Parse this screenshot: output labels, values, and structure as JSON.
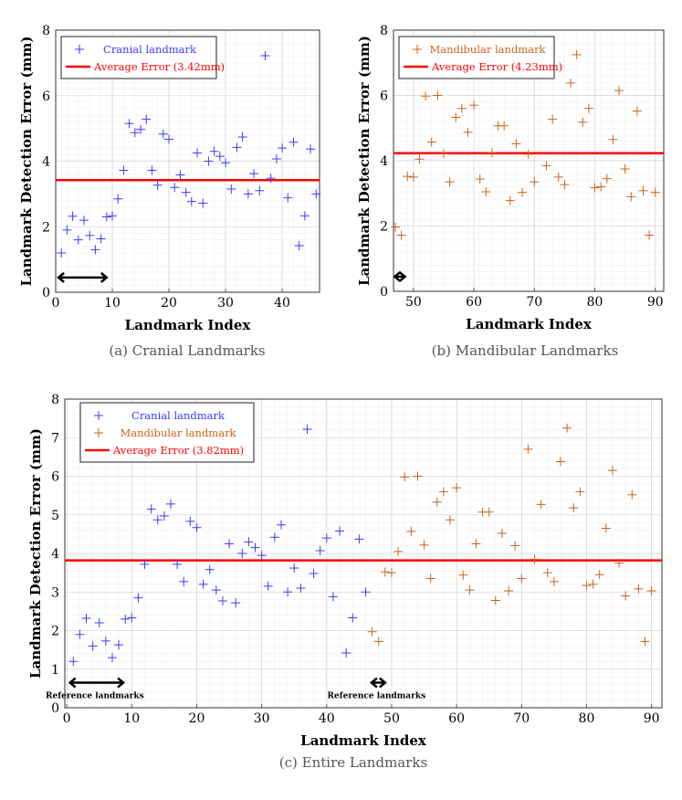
{
  "colors": {
    "cranial": "#3b3bff",
    "mandibular": "#c8651b",
    "average": "#ff0000",
    "arrow": "#000000"
  },
  "chart_data": [
    {
      "type": "scatter",
      "caption": "(a) Cranial Landmarks",
      "xlabel": "Landmark Index",
      "ylabel": "Landmark Detection Error (mm)",
      "xlim": [
        0,
        46.6
      ],
      "ylim": [
        0,
        8
      ],
      "grid": true,
      "legend_position": "top-left",
      "xticks": [
        0,
        10,
        20,
        30,
        40
      ],
      "yticks": [
        0,
        2,
        4,
        6,
        8
      ],
      "series": [
        {
          "name": "Cranial landmark",
          "color_key": "cranial",
          "x_start": 1,
          "values": [
            1.2,
            1.9,
            2.32,
            1.6,
            2.2,
            1.73,
            1.3,
            1.63,
            2.3,
            2.33,
            2.85,
            3.72,
            5.15,
            4.87,
            4.97,
            5.28,
            3.72,
            3.27,
            4.83,
            4.67,
            3.2,
            3.58,
            3.05,
            2.77,
            4.25,
            2.72,
            4.0,
            4.3,
            4.15,
            3.95,
            3.15,
            4.42,
            4.74,
            3.0,
            3.62,
            3.1,
            7.22,
            3.48,
            4.07,
            4.4,
            2.88,
            4.58,
            1.42,
            2.33,
            4.37,
            3.0
          ]
        }
      ],
      "average": {
        "name": "Average Error (3.42mm)",
        "value": 3.42
      },
      "reference_arrows": [
        {
          "from": 0.5,
          "to": 9,
          "y": 0.45,
          "label": ""
        }
      ]
    },
    {
      "type": "scatter",
      "caption": "(b) Mandibular Landmarks",
      "xlabel": "Landmark Index",
      "ylabel": "Landmark Detection Error (mm)",
      "xlim": [
        46.7,
        91.4
      ],
      "ylim": [
        0,
        8
      ],
      "grid": true,
      "legend_position": "top-left",
      "xticks": [
        50,
        60,
        70,
        80,
        90
      ],
      "yticks": [
        0,
        2,
        4,
        6,
        8
      ],
      "series": [
        {
          "name": "Mandibular landmark",
          "color_key": "mandibular",
          "x_start": 47,
          "values": [
            1.97,
            1.72,
            3.52,
            3.5,
            4.05,
            5.98,
            4.57,
            6.0,
            4.22,
            3.35,
            5.33,
            5.6,
            4.87,
            5.7,
            3.44,
            3.05,
            4.25,
            5.07,
            5.07,
            2.78,
            4.52,
            3.03,
            4.2,
            3.35,
            6.7,
            3.85,
            5.27,
            3.5,
            3.27,
            6.38,
            7.25,
            5.18,
            5.6,
            3.17,
            3.2,
            3.45,
            4.65,
            6.15,
            3.75,
            2.9,
            5.52,
            3.08,
            1.72,
            3.03
          ]
        }
      ],
      "average": {
        "name": "Average Error (4.23mm)",
        "value": 4.23
      },
      "reference_arrows": [
        {
          "from": 46.9,
          "to": 48.6,
          "y": 0.45,
          "label": ""
        }
      ]
    },
    {
      "type": "scatter",
      "caption": "(c) Entire Landmarks",
      "xlabel": "Landmark Index",
      "ylabel": "Landmark Detection Error (mm)",
      "xlim": [
        -0.3,
        91.6
      ],
      "ylim": [
        0,
        8
      ],
      "grid": true,
      "legend_position": "top-left",
      "xticks": [
        0,
        10,
        20,
        30,
        40,
        50,
        60,
        70,
        80,
        90
      ],
      "yticks": [
        0,
        1,
        2,
        3,
        4,
        5,
        6,
        7,
        8
      ],
      "series": [
        {
          "name": "Cranial landmark",
          "color_key": "cranial",
          "x_start": 1,
          "ref": 0
        },
        {
          "name": "Mandibular landmark",
          "color_key": "mandibular",
          "x_start": 47,
          "ref": 1
        }
      ],
      "average": {
        "name": "Average Error (3.82mm)",
        "value": 3.82
      },
      "reference_arrows": [
        {
          "from": 0.5,
          "to": 8.7,
          "y": 0.65,
          "label": "Reference landmarks"
        },
        {
          "from": 46.9,
          "to": 49,
          "y": 0.65,
          "label": "Reference landmarks"
        }
      ]
    }
  ]
}
